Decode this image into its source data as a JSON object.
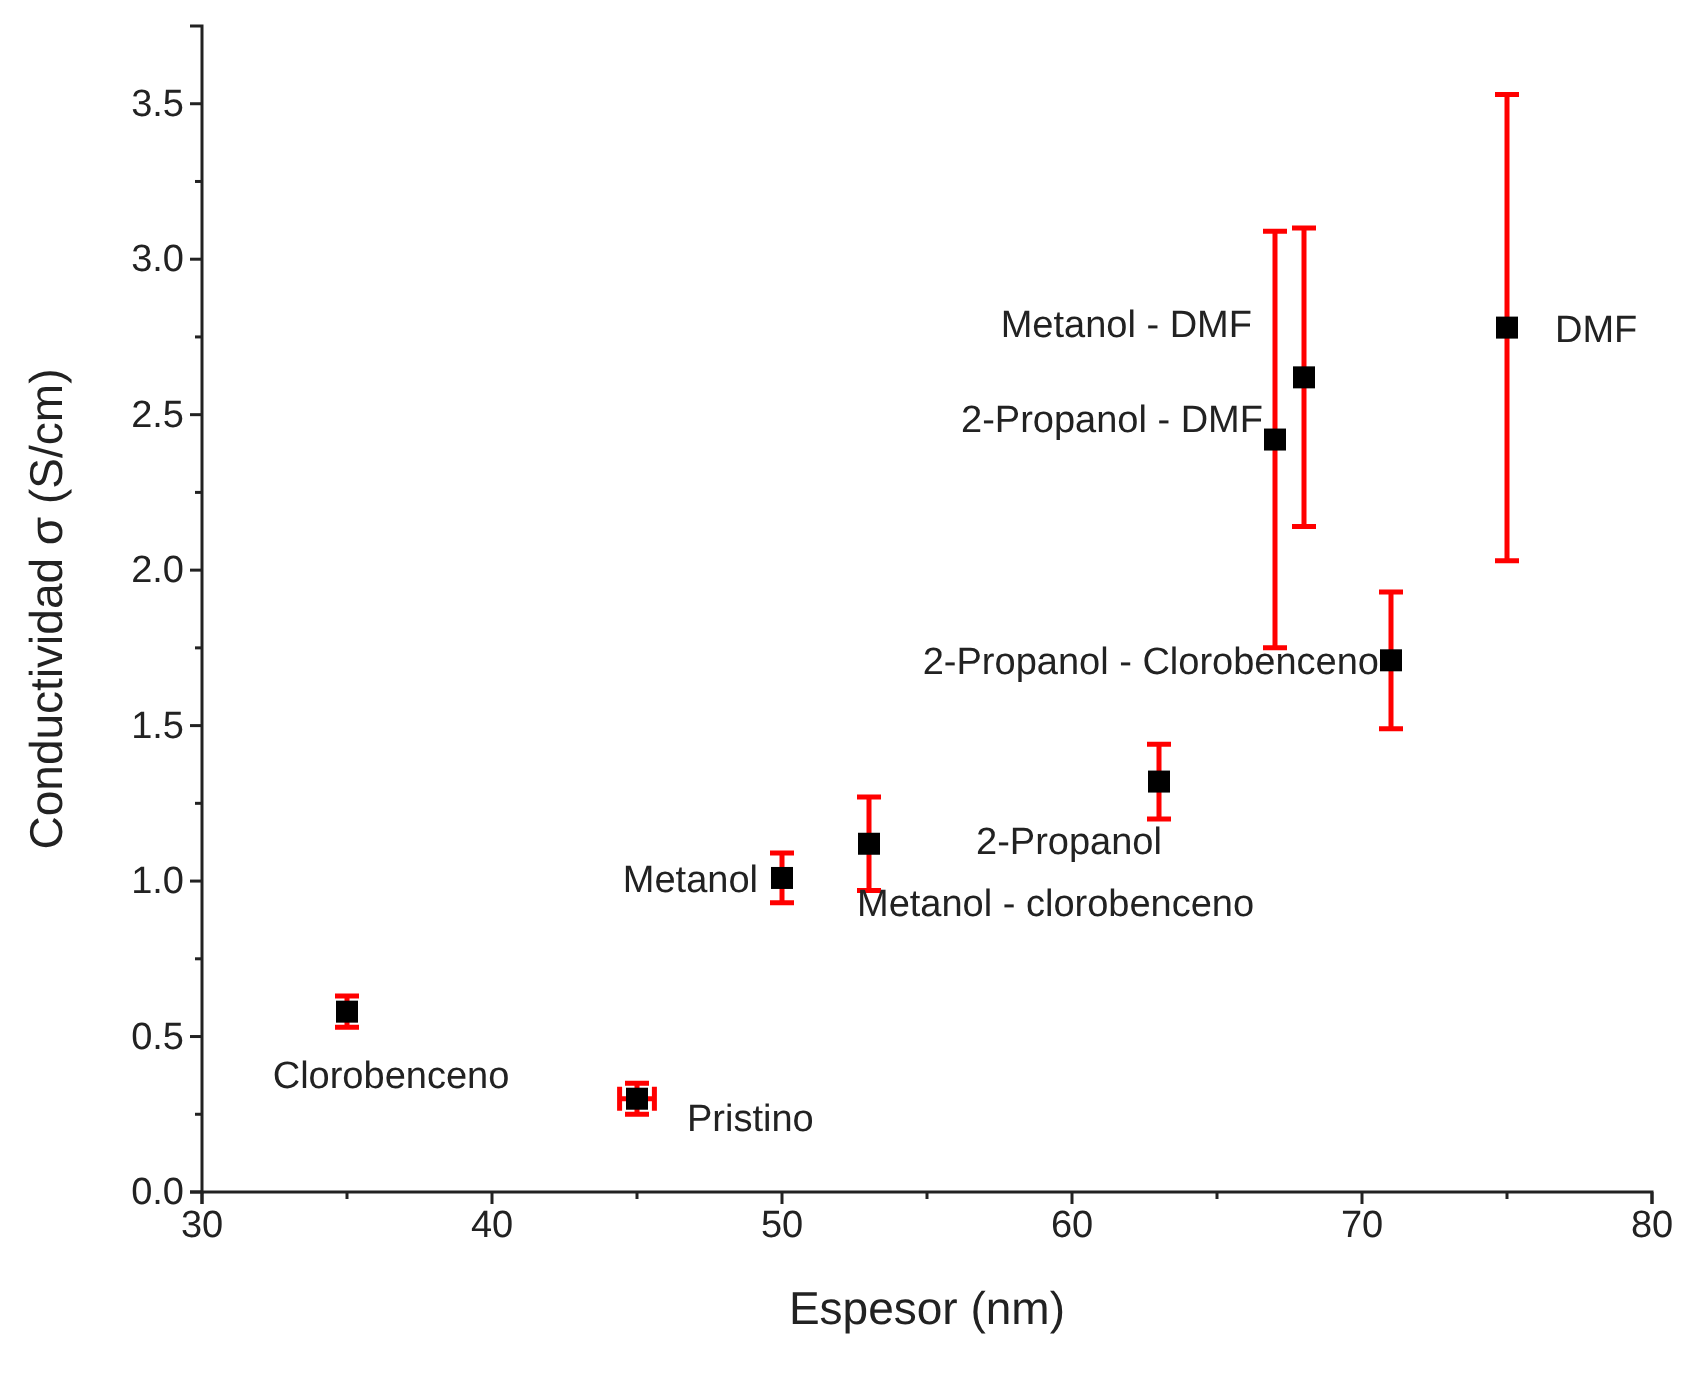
{
  "chart_data": {
    "type": "scatter",
    "xlabel": "Espesor (nm)",
    "ylabel": "Conductividad σ (S/cm)",
    "x": [
      35,
      45,
      50,
      53,
      63,
      71,
      67,
      68,
      75
    ],
    "values": [
      0.58,
      0.3,
      1.01,
      1.12,
      1.32,
      1.71,
      2.42,
      2.62,
      2.78
    ],
    "errors": [
      0.05,
      0.05,
      [
        0.93,
        1.09
      ],
      [
        0.97,
        1.27
      ],
      [
        1.2,
        1.44
      ],
      [
        1.49,
        1.93
      ],
      [
        1.75,
        3.09
      ],
      [
        2.14,
        3.1
      ],
      [
        2.03,
        3.53
      ]
    ],
    "xerrors": [
      null,
      0.6,
      null,
      null,
      null,
      null,
      null,
      null,
      null
    ],
    "color": "#000000",
    "marker": "square",
    "xlim": [
      30,
      80
    ],
    "xticks": [
      30,
      40,
      50,
      60,
      70,
      80
    ],
    "ylim": [
      0,
      3.75
    ],
    "yticks": [
      {
        "value": 0,
        "label": "0.0"
      },
      {
        "value": 0.5,
        "label": "0.5"
      },
      {
        "value": 1,
        "label": "1.0"
      },
      {
        "value": 1.5,
        "label": "1.5"
      },
      {
        "value": 2,
        "label": "2.0"
      },
      {
        "value": 2.5,
        "label": "2.5"
      },
      {
        "value": 3,
        "label": "3.0"
      },
      {
        "value": 3.5,
        "label": "3.5"
      }
    ],
    "grid": false,
    "annotations": [
      {
        "text": "Clorobenceno",
        "x": 35,
        "y": 0.58
      },
      {
        "text": "Pristino",
        "x": 45,
        "y": 0.3
      },
      {
        "text": "Metanol",
        "x": 50,
        "y": 1.01
      },
      {
        "text": "Metanol - clorobenceno",
        "x": 53,
        "y": 1.12
      },
      {
        "text": "2-Propanol",
        "x": 63,
        "y": 1.32
      },
      {
        "text": "2-Propanol - Clorobenceno",
        "x": 71,
        "y": 1.71
      },
      {
        "text": "2-Propanol - DMF",
        "x": 67,
        "y": 2.42
      },
      {
        "text": "Metanol - DMF",
        "x": 68,
        "y": 2.62
      },
      {
        "text": "DMF",
        "x": 75,
        "y": 2.78
      }
    ]
  }
}
